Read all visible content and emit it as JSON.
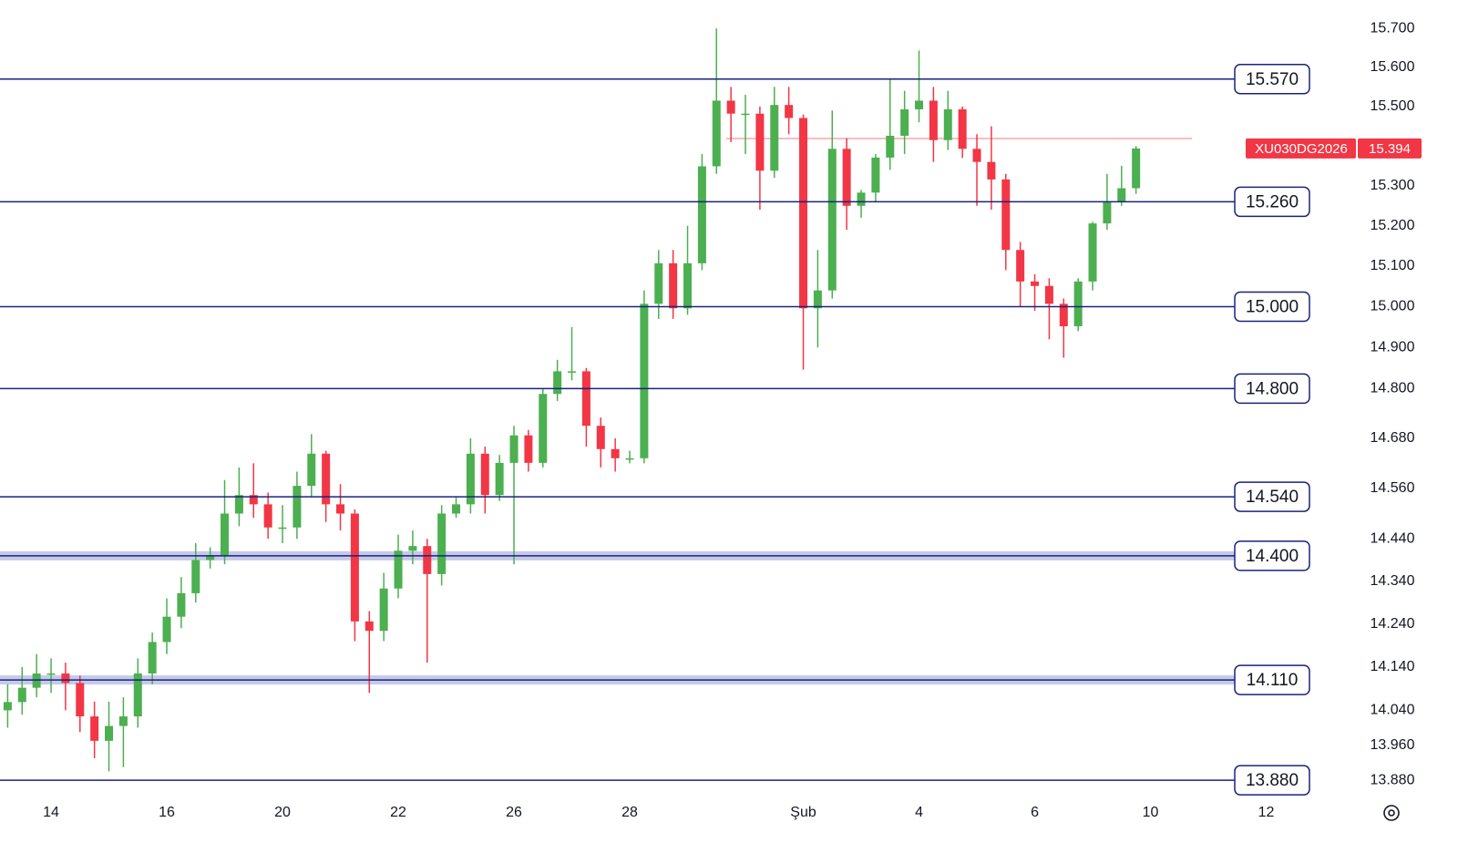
{
  "chart_data": {
    "type": "candlestick",
    "symbol": "XU030DG2026",
    "last_price": 15.394,
    "log_scale": true,
    "up_color": "#4caf50",
    "down_color": "#f23645",
    "level_color": "#1a237e",
    "band_color": "#c5cae9",
    "price_line": 15.419,
    "price_line_color": "#f4a7b0",
    "ylim": [
      13.841,
      15.773
    ],
    "yticks": [
      {
        "value": 15.7,
        "label": "15.700"
      },
      {
        "value": 15.6,
        "label": "15.600"
      },
      {
        "value": 15.5,
        "label": "15.500"
      },
      {
        "value": 15.3,
        "label": "15.300"
      },
      {
        "value": 15.2,
        "label": "15.200"
      },
      {
        "value": 15.1,
        "label": "15.100"
      },
      {
        "value": 15.0,
        "label": "15.000"
      },
      {
        "value": 14.9,
        "label": "14.900"
      },
      {
        "value": 14.8,
        "label": "14.800"
      },
      {
        "value": 14.68,
        "label": "14.680"
      },
      {
        "value": 14.56,
        "label": "14.560"
      },
      {
        "value": 14.44,
        "label": "14.440"
      },
      {
        "value": 14.34,
        "label": "14.340"
      },
      {
        "value": 14.24,
        "label": "14.240"
      },
      {
        "value": 14.14,
        "label": "14.140"
      },
      {
        "value": 14.04,
        "label": "14.040"
      },
      {
        "value": 13.96,
        "label": "13.960"
      },
      {
        "value": 13.88,
        "label": "13.880"
      }
    ],
    "levels": [
      {
        "value": 15.57,
        "label": "15.570",
        "band": false
      },
      {
        "value": 15.26,
        "label": "15.260",
        "band": false
      },
      {
        "value": 15.0,
        "label": "15.000",
        "band": false
      },
      {
        "value": 14.8,
        "label": "14.800",
        "band": false
      },
      {
        "value": 14.54,
        "label": "14.540",
        "band": false
      },
      {
        "value": 14.4,
        "label": "14.400",
        "band": true
      },
      {
        "value": 14.11,
        "label": "14.110",
        "band": true
      },
      {
        "value": 13.88,
        "label": "13.880",
        "band": false
      }
    ],
    "categories": [
      null,
      null,
      null,
      "14",
      null,
      null,
      null,
      null,
      null,
      null,
      null,
      "16",
      null,
      null,
      null,
      null,
      null,
      null,
      null,
      "20",
      null,
      null,
      null,
      null,
      null,
      null,
      null,
      "22",
      null,
      null,
      null,
      null,
      null,
      null,
      null,
      "26",
      null,
      null,
      null,
      null,
      null,
      null,
      null,
      "28",
      null,
      null,
      null,
      null,
      null,
      null,
      null,
      null,
      null,
      null,
      null,
      "Şub",
      null,
      null,
      null,
      null,
      null,
      null,
      null,
      "4",
      null,
      null,
      null,
      null,
      null,
      null,
      null,
      "6",
      null,
      null,
      null,
      null,
      null,
      null,
      null,
      "10",
      null,
      null,
      null,
      null,
      null,
      null,
      null,
      "12"
    ],
    "open": [
      14.04,
      14.059,
      14.092,
      14.125,
      14.125,
      14.103,
      14.026,
      13.97,
      14.004,
      14.026,
      14.125,
      14.198,
      14.257,
      14.312,
      14.39,
      14.401,
      14.5,
      14.544,
      14.522,
      14.467,
      14.467,
      14.566,
      14.643,
      14.522,
      14.5,
      14.246,
      14.224,
      14.323,
      14.412,
      14.423,
      14.357,
      14.5,
      14.522,
      14.643,
      14.544,
      14.621,
      14.687,
      14.621,
      14.787,
      14.842,
      14.842,
      14.71,
      14.654,
      14.632,
      14.632,
      15.007,
      15.107,
      14.996,
      15.107,
      15.349,
      15.515,
      15.482,
      15.482,
      15.338,
      15.504,
      15.471,
      14.996,
      15.04,
      15.393,
      15.25,
      15.283,
      15.371,
      15.426,
      15.493,
      15.515,
      15.415,
      15.493,
      15.393,
      15.36,
      15.316,
      15.14,
      15.062,
      15.051,
      15.007,
      14.952,
      15.062,
      15.206,
      15.261,
      15.294,
      null,
      null,
      null,
      null,
      null,
      null,
      null,
      null,
      null
    ],
    "high": [
      14.1,
      14.14,
      14.17,
      14.16,
      14.15,
      14.12,
      14.06,
      14.06,
      14.07,
      14.16,
      14.22,
      14.3,
      14.35,
      14.43,
      14.42,
      14.58,
      14.61,
      14.62,
      14.55,
      14.52,
      14.6,
      14.69,
      14.65,
      14.57,
      14.51,
      14.27,
      14.36,
      14.45,
      14.46,
      14.44,
      14.52,
      14.54,
      14.68,
      14.66,
      14.64,
      14.71,
      14.7,
      14.8,
      14.87,
      14.95,
      14.85,
      14.73,
      14.68,
      14.65,
      15.04,
      15.14,
      15.14,
      15.2,
      15.38,
      15.7,
      15.55,
      15.53,
      15.5,
      15.55,
      15.55,
      15.48,
      15.14,
      15.49,
      15.42,
      15.29,
      15.38,
      15.57,
      15.54,
      15.643,
      15.55,
      15.54,
      15.5,
      15.43,
      15.45,
      15.33,
      15.16,
      15.08,
      15.07,
      15.02,
      15.07,
      15.21,
      15.33,
      15.35,
      15.4,
      null,
      null,
      null,
      null,
      null,
      null,
      null,
      null,
      null
    ],
    "low": [
      14.0,
      14.03,
      14.07,
      14.08,
      14.04,
      13.99,
      13.93,
      13.9,
      13.91,
      14.0,
      14.1,
      14.17,
      14.23,
      14.29,
      14.37,
      14.38,
      14.47,
      14.49,
      14.44,
      14.43,
      14.44,
      14.54,
      14.48,
      14.46,
      14.2,
      14.08,
      14.2,
      14.3,
      14.38,
      14.15,
      14.33,
      14.49,
      14.5,
      14.5,
      14.53,
      14.38,
      14.6,
      14.61,
      14.77,
      14.82,
      14.66,
      14.61,
      14.6,
      14.62,
      14.62,
      14.97,
      14.97,
      14.98,
      15.09,
      15.33,
      15.41,
      15.38,
      15.24,
      15.32,
      15.43,
      14.846,
      14.9,
      15.02,
      15.19,
      15.22,
      15.26,
      15.34,
      15.38,
      15.46,
      15.36,
      15.39,
      15.37,
      15.25,
      15.24,
      15.09,
      15.0,
      14.99,
      14.92,
      14.875,
      14.94,
      15.04,
      15.19,
      15.25,
      15.28,
      null,
      null,
      null,
      null,
      null,
      null,
      null,
      null,
      null
    ],
    "close": [
      14.059,
      14.092,
      14.125,
      14.125,
      14.103,
      14.026,
      13.97,
      14.004,
      14.026,
      14.125,
      14.198,
      14.257,
      14.312,
      14.39,
      14.401,
      14.5,
      14.544,
      14.522,
      14.467,
      14.467,
      14.566,
      14.643,
      14.522,
      14.5,
      14.246,
      14.224,
      14.323,
      14.412,
      14.423,
      14.357,
      14.5,
      14.522,
      14.643,
      14.544,
      14.621,
      14.687,
      14.621,
      14.787,
      14.842,
      14.842,
      14.71,
      14.654,
      14.632,
      14.632,
      15.007,
      15.107,
      14.996,
      15.107,
      15.349,
      15.515,
      15.482,
      15.482,
      15.338,
      15.504,
      15.471,
      14.996,
      15.04,
      15.393,
      15.25,
      15.283,
      15.371,
      15.426,
      15.493,
      15.515,
      15.415,
      15.493,
      15.393,
      15.36,
      15.316,
      15.14,
      15.062,
      15.051,
      15.007,
      14.952,
      15.062,
      15.206,
      15.261,
      15.294,
      15.394,
      null,
      null,
      null,
      null,
      null,
      null,
      null,
      null,
      null
    ]
  }
}
